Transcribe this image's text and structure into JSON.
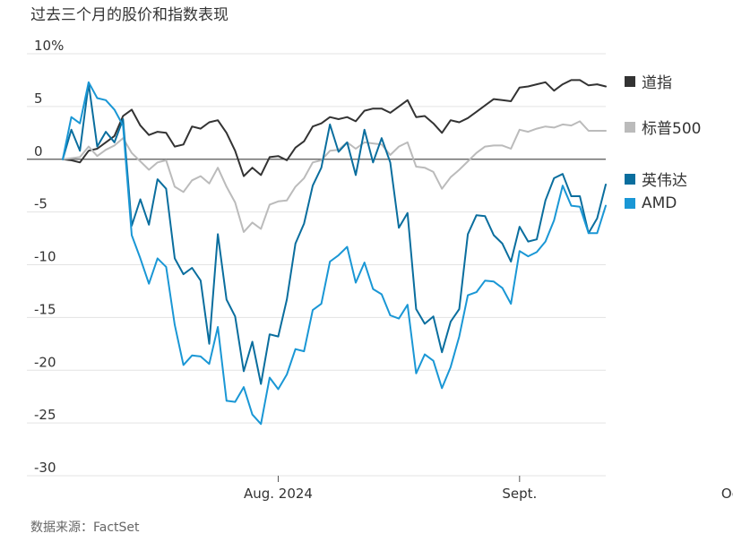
{
  "title": "过去三个月的股价和指数表现",
  "source": "数据来源：FactSet",
  "chart_data": {
    "type": "line",
    "title": "过去三个月的股价和指数表现",
    "xlabel": "",
    "ylabel": "",
    "ylim": [
      -30,
      10
    ],
    "y_ticks": [
      10,
      5,
      0,
      -5,
      -10,
      -15,
      -20,
      -25,
      -30
    ],
    "y_tick_labels": [
      "10%",
      "5",
      "0",
      "-5",
      "-10",
      "-15",
      "-20",
      "-25",
      "-30"
    ],
    "x_ticks": [
      {
        "index": 25,
        "label": "Aug. 2024"
      },
      {
        "index": 53,
        "label": "Sept."
      },
      {
        "index": 78,
        "label": "Oct."
      }
    ],
    "grid": true,
    "legend_position": "right",
    "series": [
      {
        "name": "道指",
        "color": "#333333",
        "values": [
          0,
          -0.1,
          -0.3,
          0.8,
          1.0,
          1.6,
          2.2,
          4.1,
          4.7,
          3.2,
          2.3,
          2.6,
          2.5,
          1.2,
          1.4,
          3.1,
          2.9,
          3.5,
          3.7,
          2.5,
          0.8,
          -1.6,
          -0.8,
          -1.5,
          0.2,
          0.3,
          -0.1,
          1.1,
          1.7,
          3.1,
          3.4,
          4.0,
          3.8,
          4.0,
          3.6,
          4.6,
          4.8,
          4.8,
          4.4,
          5.0,
          5.6,
          4.0,
          4.1,
          3.4,
          2.5,
          3.7,
          3.5,
          3.9,
          4.5,
          5.1,
          5.7,
          5.6,
          5.5,
          6.8,
          6.9,
          7.1,
          7.3,
          6.5,
          7.1,
          7.5,
          7.5,
          7.0,
          7.1,
          6.9
        ]
      },
      {
        "name": "标普500",
        "color": "#bbbbbb",
        "values": [
          0,
          0.1,
          0.2,
          1.2,
          0.3,
          0.9,
          1.3,
          2.0,
          0.6,
          -0.2,
          -1.0,
          -0.3,
          -0.1,
          -2.6,
          -3.1,
          -2.0,
          -1.6,
          -2.3,
          -0.8,
          -2.6,
          -4.1,
          -6.9,
          -6.0,
          -6.6,
          -4.3,
          -4.0,
          -3.9,
          -2.6,
          -1.8,
          -0.3,
          -0.1,
          0.8,
          0.9,
          1.6,
          1.0,
          1.6,
          1.5,
          1.4,
          0.4,
          1.2,
          1.6,
          -0.7,
          -0.8,
          -1.2,
          -2.8,
          -1.7,
          -1.0,
          -0.2,
          0.6,
          1.2,
          1.3,
          1.3,
          1.0,
          2.8,
          2.6,
          2.9,
          3.1,
          3.0,
          3.3,
          3.2,
          3.6,
          2.7,
          2.7,
          2.7
        ]
      },
      {
        "name": "英伟达",
        "color": "#0a6e9e",
        "values": [
          0,
          2.8,
          0.8,
          7.2,
          1.2,
          2.6,
          1.6,
          3.8,
          -6.3,
          -3.8,
          -6.2,
          -1.9,
          -2.8,
          -9.4,
          -10.9,
          -10.3,
          -11.5,
          -17.5,
          -7.1,
          -13.3,
          -14.9,
          -20.1,
          -17.3,
          -21.3,
          -16.6,
          -16.8,
          -13.3,
          -8.0,
          -6.1,
          -2.5,
          -0.8,
          3.3,
          0.7,
          1.6,
          -1.5,
          2.8,
          -0.3,
          2.0,
          -0.3,
          -6.5,
          -5.1,
          -14.2,
          -15.6,
          -14.9,
          -18.3,
          -15.4,
          -14.2,
          -7.1,
          -5.3,
          -5.4,
          -7.2,
          -8.0,
          -9.7,
          -6.4,
          -7.8,
          -7.6,
          -3.9,
          -1.8,
          -1.4,
          -3.5,
          -3.5,
          -7.0,
          -5.6,
          -2.4
        ]
      },
      {
        "name": "AMD",
        "color": "#1a97d5",
        "values": [
          0,
          4.0,
          3.4,
          7.3,
          5.8,
          5.6,
          4.7,
          3.2,
          -7.2,
          -9.4,
          -11.8,
          -9.4,
          -10.2,
          -15.7,
          -19.5,
          -18.6,
          -18.7,
          -19.4,
          -15.9,
          -22.9,
          -23.0,
          -21.6,
          -24.2,
          -25.1,
          -20.7,
          -21.8,
          -20.4,
          -18.0,
          -18.2,
          -14.3,
          -13.7,
          -9.7,
          -9.1,
          -8.3,
          -11.7,
          -9.8,
          -12.3,
          -12.8,
          -14.8,
          -15.1,
          -13.8,
          -20.3,
          -18.5,
          -19.1,
          -21.7,
          -19.7,
          -16.8,
          -12.9,
          -12.6,
          -11.5,
          -11.6,
          -12.2,
          -13.7,
          -8.7,
          -9.2,
          -8.8,
          -7.8,
          -5.8,
          -2.5,
          -4.4,
          -4.5,
          -7.0,
          -7.0,
          -4.4
        ]
      }
    ]
  }
}
